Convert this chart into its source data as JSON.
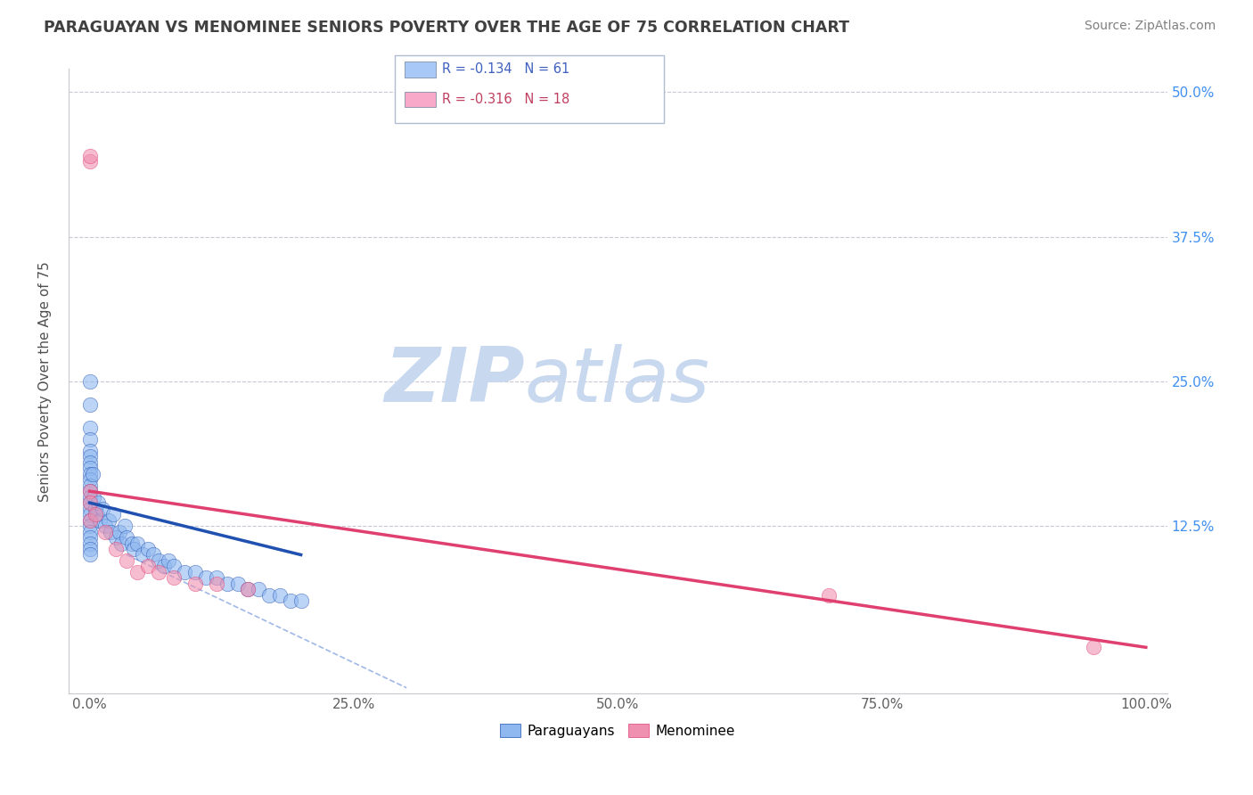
{
  "title": "PARAGUAYAN VS MENOMINEE SENIORS POVERTY OVER THE AGE OF 75 CORRELATION CHART",
  "source": "Source: ZipAtlas.com",
  "ylabel": "Seniors Poverty Over the Age of 75",
  "xlim": [
    -2,
    102
  ],
  "ylim": [
    -2,
    52
  ],
  "xticks": [
    0,
    25,
    50,
    75,
    100
  ],
  "xticklabels": [
    "0.0%",
    "25.0%",
    "50.0%",
    "75.0%",
    "100.0%"
  ],
  "yticks": [
    0,
    12.5,
    25,
    37.5,
    50
  ],
  "yticklabels": [
    "",
    "12.5%",
    "25.0%",
    "37.5%",
    "50.0%"
  ],
  "watermark_zip": "ZIP",
  "watermark_atlas": "atlas",
  "legend_entries": [
    {
      "label": "R = -0.134   N = 61",
      "color": "#a8c8f8"
    },
    {
      "label": "R = -0.316   N = 18",
      "color": "#f8a8c8"
    }
  ],
  "legend_labels": [
    "Paraguayans",
    "Menominee"
  ],
  "paraguayan_x": [
    0.0,
    0.0,
    0.0,
    0.0,
    0.0,
    0.0,
    0.0,
    0.0,
    0.0,
    0.0,
    0.0,
    0.0,
    0.0,
    0.0,
    0.0,
    0.0,
    0.0,
    0.0,
    0.0,
    0.0,
    0.0,
    0.0,
    0.0,
    0.3,
    0.4,
    0.5,
    0.7,
    0.8,
    1.0,
    1.2,
    1.5,
    1.8,
    2.0,
    2.2,
    2.5,
    2.8,
    3.0,
    3.3,
    3.5,
    4.0,
    4.2,
    4.5,
    5.0,
    5.5,
    6.0,
    6.5,
    7.0,
    7.5,
    8.0,
    9.0,
    10.0,
    11.0,
    12.0,
    13.0,
    14.0,
    15.0,
    16.0,
    17.0,
    18.0,
    19.0,
    20.0
  ],
  "paraguayan_y": [
    25.0,
    23.0,
    21.0,
    20.0,
    19.0,
    18.5,
    18.0,
    17.5,
    17.0,
    16.5,
    16.0,
    15.5,
    15.0,
    14.5,
    14.0,
    13.5,
    13.0,
    12.5,
    12.0,
    11.5,
    11.0,
    10.5,
    10.0,
    17.0,
    15.0,
    14.0,
    13.5,
    14.5,
    13.0,
    14.0,
    12.5,
    13.0,
    12.0,
    13.5,
    11.5,
    12.0,
    11.0,
    12.5,
    11.5,
    11.0,
    10.5,
    11.0,
    10.0,
    10.5,
    10.0,
    9.5,
    9.0,
    9.5,
    9.0,
    8.5,
    8.5,
    8.0,
    8.0,
    7.5,
    7.5,
    7.0,
    7.0,
    6.5,
    6.5,
    6.0,
    6.0
  ],
  "menominee_x": [
    0.0,
    0.0,
    0.0,
    0.0,
    0.0,
    0.5,
    1.5,
    2.5,
    3.5,
    4.5,
    5.5,
    6.5,
    8.0,
    10.0,
    12.0,
    15.0,
    70.0,
    95.0
  ],
  "menominee_y": [
    44.0,
    44.5,
    15.5,
    14.5,
    13.0,
    13.5,
    12.0,
    10.5,
    9.5,
    8.5,
    9.0,
    8.5,
    8.0,
    7.5,
    7.5,
    7.0,
    6.5,
    2.0
  ],
  "blue_line_x0": 0.0,
  "blue_line_x1": 20.0,
  "blue_line_y0": 14.5,
  "blue_line_y1": 10.0,
  "pink_line_x0": 0.0,
  "pink_line_x1": 100.0,
  "pink_line_y0": 15.5,
  "pink_line_y1": 2.0,
  "dash_line_x0": 3.5,
  "dash_line_x1": 30.0,
  "dash_line_y0": 10.0,
  "dash_line_y1": -1.5,
  "blue_line_color": "#2050b0",
  "pink_line_color": "#e04070",
  "dashed_line_color": "#a0b8e8",
  "grid_color": "#c8c8d8",
  "dot_blue": "#90b8f0",
  "dot_pink": "#f090b0",
  "background_color": "#ffffff",
  "title_color": "#404040",
  "axis_label_color": "#505050",
  "tick_label_color_right": "#4090f0",
  "tick_label_color_bottom": "#606060",
  "watermark_color_zip": "#c8d8ee",
  "watermark_color_atlas": "#c8d8ee",
  "source_color": "#808080"
}
